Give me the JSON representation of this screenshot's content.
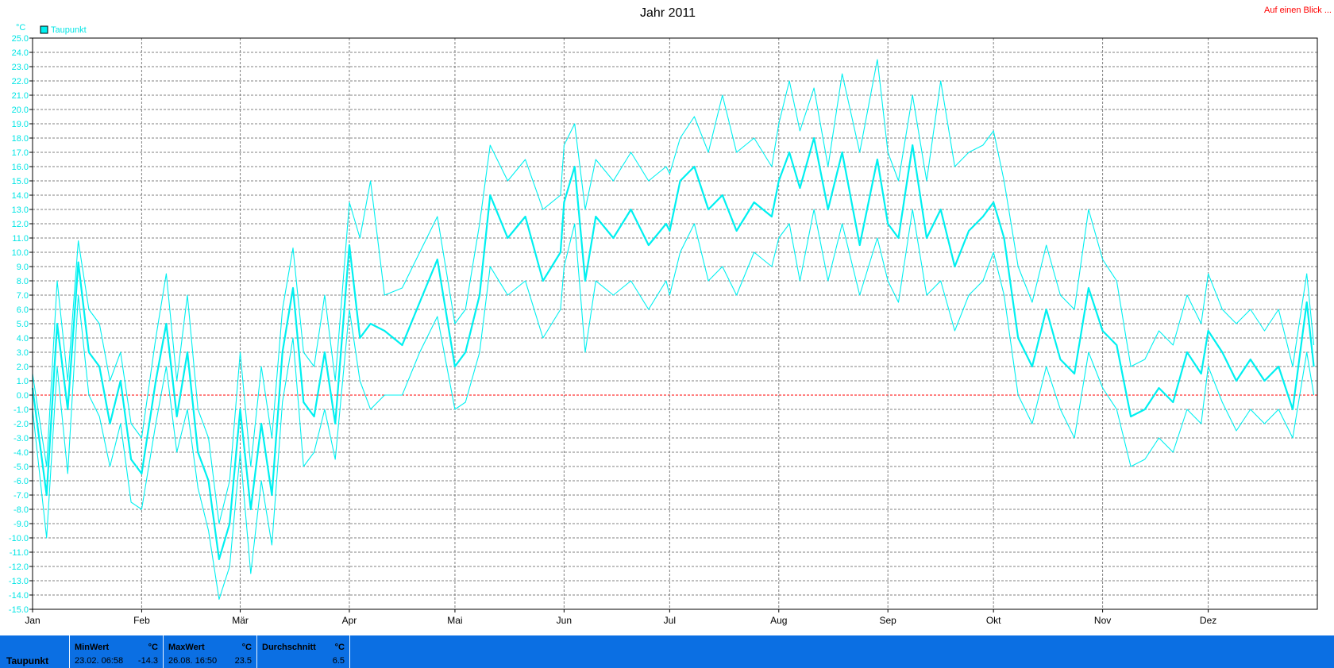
{
  "header": {
    "title": "Jahr 2011",
    "link": "Auf einen Blick ..."
  },
  "chart_data": {
    "type": "line",
    "title": "Jahr 2011",
    "y_unit": "°C",
    "ylim": [
      -15,
      25
    ],
    "ytick_step": 1,
    "ytick_labels": [
      "25.0",
      "24.0",
      "23.0",
      "22.0",
      "21.0",
      "20.0",
      "19.0",
      "18.0",
      "17.0",
      "16.0",
      "15.0",
      "14.0",
      "13.0",
      "12.0",
      "11.0",
      "10.0",
      "9.0",
      "8.0",
      "7.0",
      "6.0",
      "5.0",
      "4.0",
      "3.0",
      "2.0",
      "1.0",
      "0.0",
      "-1.0",
      "-2.0",
      "-3.0",
      "-4.0",
      "-5.0",
      "-6.0",
      "-7.0",
      "-8.0",
      "-9.0",
      "-10.0",
      "-11.0",
      "-12.0",
      "-13.0",
      "-14.0",
      "-15.0"
    ],
    "x_ticks": [
      "Jan",
      "Feb",
      "Mär",
      "Apr",
      "Mai",
      "Jun",
      "Jul",
      "Aug",
      "Sep",
      "Okt",
      "Nov",
      "Dez"
    ],
    "x_tick_days": [
      0,
      31,
      59,
      90,
      120,
      151,
      181,
      212,
      243,
      273,
      304,
      334
    ],
    "days_in_year": 365,
    "grid": true,
    "zero_line": true,
    "legend": {
      "label": "Taupunkt",
      "position": "top-left"
    },
    "colors": {
      "series": "#00f0f0",
      "zero_line": "#ff0000",
      "grid": "#808080"
    },
    "series": [
      {
        "name": "Taupunkt",
        "role": "mean",
        "x": [
          0,
          4,
          7,
          10,
          13,
          16,
          19,
          22,
          25,
          28,
          31,
          35,
          38,
          41,
          44,
          47,
          50,
          53,
          56,
          59,
          62,
          65,
          68,
          71,
          74,
          77,
          80,
          83,
          86,
          90,
          93,
          96,
          100,
          105,
          110,
          115,
          120,
          123,
          127,
          130,
          135,
          140,
          145,
          150,
          151,
          154,
          157,
          160,
          165,
          170,
          175,
          180,
          181,
          184,
          188,
          192,
          196,
          200,
          205,
          210,
          212,
          215,
          218,
          222,
          226,
          230,
          235,
          240,
          243,
          246,
          250,
          254,
          258,
          262,
          266,
          270,
          273,
          276,
          280,
          284,
          288,
          292,
          296,
          300,
          304,
          308,
          312,
          316,
          320,
          324,
          328,
          332,
          334,
          338,
          342,
          346,
          350,
          354,
          358,
          362,
          364
        ],
        "y": [
          0.5,
          -7.0,
          5.0,
          -1.0,
          9.3,
          3.0,
          2.0,
          -2.0,
          1.0,
          -4.5,
          -5.5,
          1.0,
          5.0,
          -1.5,
          3.0,
          -4.0,
          -6.0,
          -11.5,
          -9.0,
          -1.0,
          -8.0,
          -2.0,
          -7.0,
          3.0,
          7.5,
          -0.5,
          -1.5,
          3.0,
          -2.0,
          10.5,
          4.0,
          5.0,
          4.5,
          3.5,
          6.5,
          9.5,
          2.0,
          3.0,
          7.0,
          14.0,
          11.0,
          12.5,
          8.0,
          10.0,
          13.5,
          16.0,
          8.0,
          12.5,
          11.0,
          13.0,
          10.5,
          12.0,
          11.5,
          15.0,
          16.0,
          13.0,
          14.0,
          11.5,
          13.5,
          12.5,
          15.0,
          17.0,
          14.5,
          18.0,
          13.0,
          17.0,
          10.5,
          16.5,
          12.0,
          11.0,
          17.5,
          11.0,
          13.0,
          9.0,
          11.5,
          12.5,
          13.5,
          11.0,
          4.0,
          2.0,
          6.0,
          2.5,
          1.5,
          7.5,
          4.5,
          3.5,
          -1.5,
          -1.0,
          0.5,
          -0.5,
          3.0,
          1.5,
          4.5,
          3.0,
          1.0,
          2.5,
          1.0,
          2.0,
          -1.0,
          6.5,
          2.0
        ]
      },
      {
        "name": "Taupunkt",
        "role": "max",
        "x": [
          0,
          4,
          7,
          10,
          13,
          16,
          19,
          22,
          25,
          28,
          31,
          35,
          38,
          41,
          44,
          47,
          50,
          53,
          56,
          59,
          62,
          65,
          68,
          71,
          74,
          77,
          80,
          83,
          86,
          90,
          93,
          96,
          100,
          105,
          110,
          115,
          120,
          123,
          127,
          130,
          135,
          140,
          145,
          150,
          151,
          154,
          157,
          160,
          165,
          170,
          175,
          180,
          181,
          184,
          188,
          192,
          196,
          200,
          205,
          210,
          212,
          215,
          218,
          222,
          226,
          230,
          235,
          240,
          243,
          246,
          250,
          254,
          258,
          262,
          266,
          270,
          273,
          276,
          280,
          284,
          288,
          292,
          296,
          300,
          304,
          308,
          312,
          316,
          320,
          324,
          328,
          332,
          334,
          338,
          342,
          346,
          350,
          354,
          358,
          362,
          364
        ],
        "y": [
          1.5,
          -5.0,
          8.0,
          1.0,
          10.8,
          6.0,
          5.0,
          1.0,
          3.0,
          -2.0,
          -3.0,
          4.0,
          8.5,
          1.0,
          7.0,
          -1.0,
          -3.0,
          -9.0,
          -6.0,
          3.0,
          -5.0,
          2.0,
          -3.0,
          6.0,
          10.3,
          3.0,
          2.0,
          7.0,
          1.0,
          13.5,
          11.0,
          15.0,
          7.0,
          7.5,
          10.0,
          12.5,
          5.0,
          6.0,
          12.0,
          17.5,
          15.0,
          16.5,
          13.0,
          14.0,
          17.5,
          19.0,
          13.0,
          16.5,
          15.0,
          17.0,
          15.0,
          16.0,
          15.5,
          18.0,
          19.5,
          17.0,
          21.0,
          17.0,
          18.0,
          16.0,
          19.0,
          22.0,
          18.5,
          21.5,
          16.0,
          22.5,
          17.0,
          23.5,
          17.0,
          15.0,
          21.0,
          15.0,
          22.0,
          16.0,
          17.0,
          17.5,
          18.5,
          15.0,
          9.0,
          6.5,
          10.5,
          7.0,
          6.0,
          13.0,
          9.5,
          8.0,
          2.0,
          2.5,
          4.5,
          3.5,
          7.0,
          5.0,
          8.5,
          6.0,
          5.0,
          6.0,
          4.5,
          6.0,
          2.0,
          8.5,
          3.5
        ]
      },
      {
        "name": "Taupunkt",
        "role": "min",
        "x": [
          0,
          4,
          7,
          10,
          13,
          16,
          19,
          22,
          25,
          28,
          31,
          35,
          38,
          41,
          44,
          47,
          50,
          53,
          56,
          59,
          62,
          65,
          68,
          71,
          74,
          77,
          80,
          83,
          86,
          90,
          93,
          96,
          100,
          105,
          110,
          115,
          120,
          123,
          127,
          130,
          135,
          140,
          145,
          150,
          151,
          154,
          157,
          160,
          165,
          170,
          175,
          180,
          181,
          184,
          188,
          192,
          196,
          200,
          205,
          210,
          212,
          215,
          218,
          222,
          226,
          230,
          235,
          240,
          243,
          246,
          250,
          254,
          258,
          262,
          266,
          270,
          273,
          276,
          280,
          284,
          288,
          292,
          296,
          300,
          304,
          308,
          312,
          316,
          320,
          324,
          328,
          332,
          334,
          338,
          342,
          346,
          350,
          354,
          358,
          362,
          364
        ],
        "y": [
          -1.0,
          -10.0,
          2.0,
          -5.5,
          7.0,
          0.0,
          -1.5,
          -5.0,
          -2.0,
          -7.5,
          -8.0,
          -2.0,
          2.0,
          -4.0,
          -1.0,
          -6.5,
          -9.5,
          -14.3,
          -12.0,
          -4.0,
          -12.5,
          -6.0,
          -10.5,
          -0.5,
          4.0,
          -5.0,
          -4.0,
          -1.0,
          -4.5,
          6.0,
          1.0,
          -1.0,
          0.0,
          0.0,
          3.0,
          5.5,
          -1.0,
          -0.5,
          3.0,
          9.0,
          7.0,
          8.0,
          4.0,
          6.0,
          9.0,
          12.0,
          3.0,
          8.0,
          7.0,
          8.0,
          6.0,
          8.0,
          7.0,
          10.0,
          12.0,
          8.0,
          9.0,
          7.0,
          10.0,
          9.0,
          11.0,
          12.0,
          8.0,
          13.0,
          8.0,
          12.0,
          7.0,
          11.0,
          8.0,
          6.5,
          13.0,
          7.0,
          8.0,
          4.5,
          7.0,
          8.0,
          10.0,
          7.0,
          0.0,
          -2.0,
          2.0,
          -1.0,
          -3.0,
          3.0,
          0.5,
          -1.0,
          -5.0,
          -4.5,
          -3.0,
          -4.0,
          -1.0,
          -2.0,
          2.0,
          -0.5,
          -2.5,
          -1.0,
          -2.0,
          -1.0,
          -3.0,
          3.0,
          0.0
        ]
      }
    ]
  },
  "stats": {
    "series_label": "Taupunkt",
    "min": {
      "label": "MinWert",
      "unit": "°C",
      "when": "23.02.  06:58",
      "value": "-14.3"
    },
    "max": {
      "label": "MaxWert",
      "unit": "°C",
      "when": "26.08.  16:50",
      "value": "23.5"
    },
    "avg": {
      "label": "Durchschnitt",
      "unit": "°C",
      "value": "6.5"
    }
  }
}
